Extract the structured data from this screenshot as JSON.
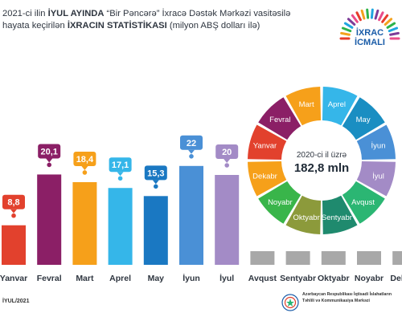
{
  "header": {
    "line1_a": "2021-ci ilin ",
    "line1_b": "İYUL AYINDA",
    "line1_c": " “Bir Pəncərə” İxracə Dəstək Mərkəzi vasitəsilə",
    "line2_a": "hayata keçirilən ",
    "line2_b": "İXRACIN STATİSTİKASI",
    "line2_c": " (milyon ABŞ dolları ilə)"
  },
  "logo": {
    "line1": "İXRAC",
    "line2": "İCMALI",
    "colors": [
      "#e63c2b",
      "#f3a21e",
      "#2db34a",
      "#1fa6e0",
      "#7d3c98",
      "#ea4c89"
    ]
  },
  "chart_data": {
    "type": "bar",
    "title": "",
    "xlabel": "",
    "ylabel": "",
    "categories": [
      "Yanvar",
      "Fevral",
      "Mart",
      "Aprel",
      "May",
      "İyun",
      "İyul",
      "Avqust",
      "Sentyabr",
      "Oktyabr",
      "Noyabr",
      "Dekabr"
    ],
    "values": [
      8.8,
      20.1,
      18.4,
      17.1,
      15.3,
      22,
      20,
      null,
      null,
      null,
      null,
      null
    ],
    "value_labels": [
      "8,8",
      "20,1",
      "18,4",
      "17,1",
      "15,3",
      "22",
      "20",
      "",
      "",
      "",
      "",
      ""
    ],
    "colors": [
      "#e2412d",
      "#8b1f66",
      "#f6a01a",
      "#35b6e9",
      "#1a78c2",
      "#4a90d6",
      "#a38bc6",
      "#a8a8a8",
      "#a8a8a8",
      "#a8a8a8",
      "#a8a8a8",
      "#a8a8a8"
    ],
    "ylim": [
      0,
      25
    ],
    "grid": false,
    "legend": "none"
  },
  "donut": {
    "center_line1": "2020-ci il üzrə",
    "center_line2": "182,8 mln",
    "segments": [
      {
        "label": "Mart",
        "color": "#f6a01a"
      },
      {
        "label": "Aprel",
        "color": "#35b6e9"
      },
      {
        "label": "May",
        "color": "#1a8ec2"
      },
      {
        "label": "İyun",
        "color": "#4a90d6"
      },
      {
        "label": "İyul",
        "color": "#a38bc6"
      },
      {
        "label": "Avqust",
        "color": "#2bb673"
      },
      {
        "label": "Sentyabr",
        "color": "#1f8a6e"
      },
      {
        "label": "Oktyabr",
        "color": "#8c9a3b"
      },
      {
        "label": "Noyabr",
        "color": "#39b54a"
      },
      {
        "label": "Dekabr",
        "color": "#f6a01a"
      },
      {
        "label": "Yanvar",
        "color": "#e2412d"
      },
      {
        "label": "Fevral",
        "color": "#8b1f66"
      }
    ]
  },
  "footer": {
    "date": "İYUL/2021",
    "org_line1": "Azərbaycan Respublikası İqtisadi İslahatların",
    "org_line2": "Təhlili və Kommunikasiya Mərkəzi"
  }
}
